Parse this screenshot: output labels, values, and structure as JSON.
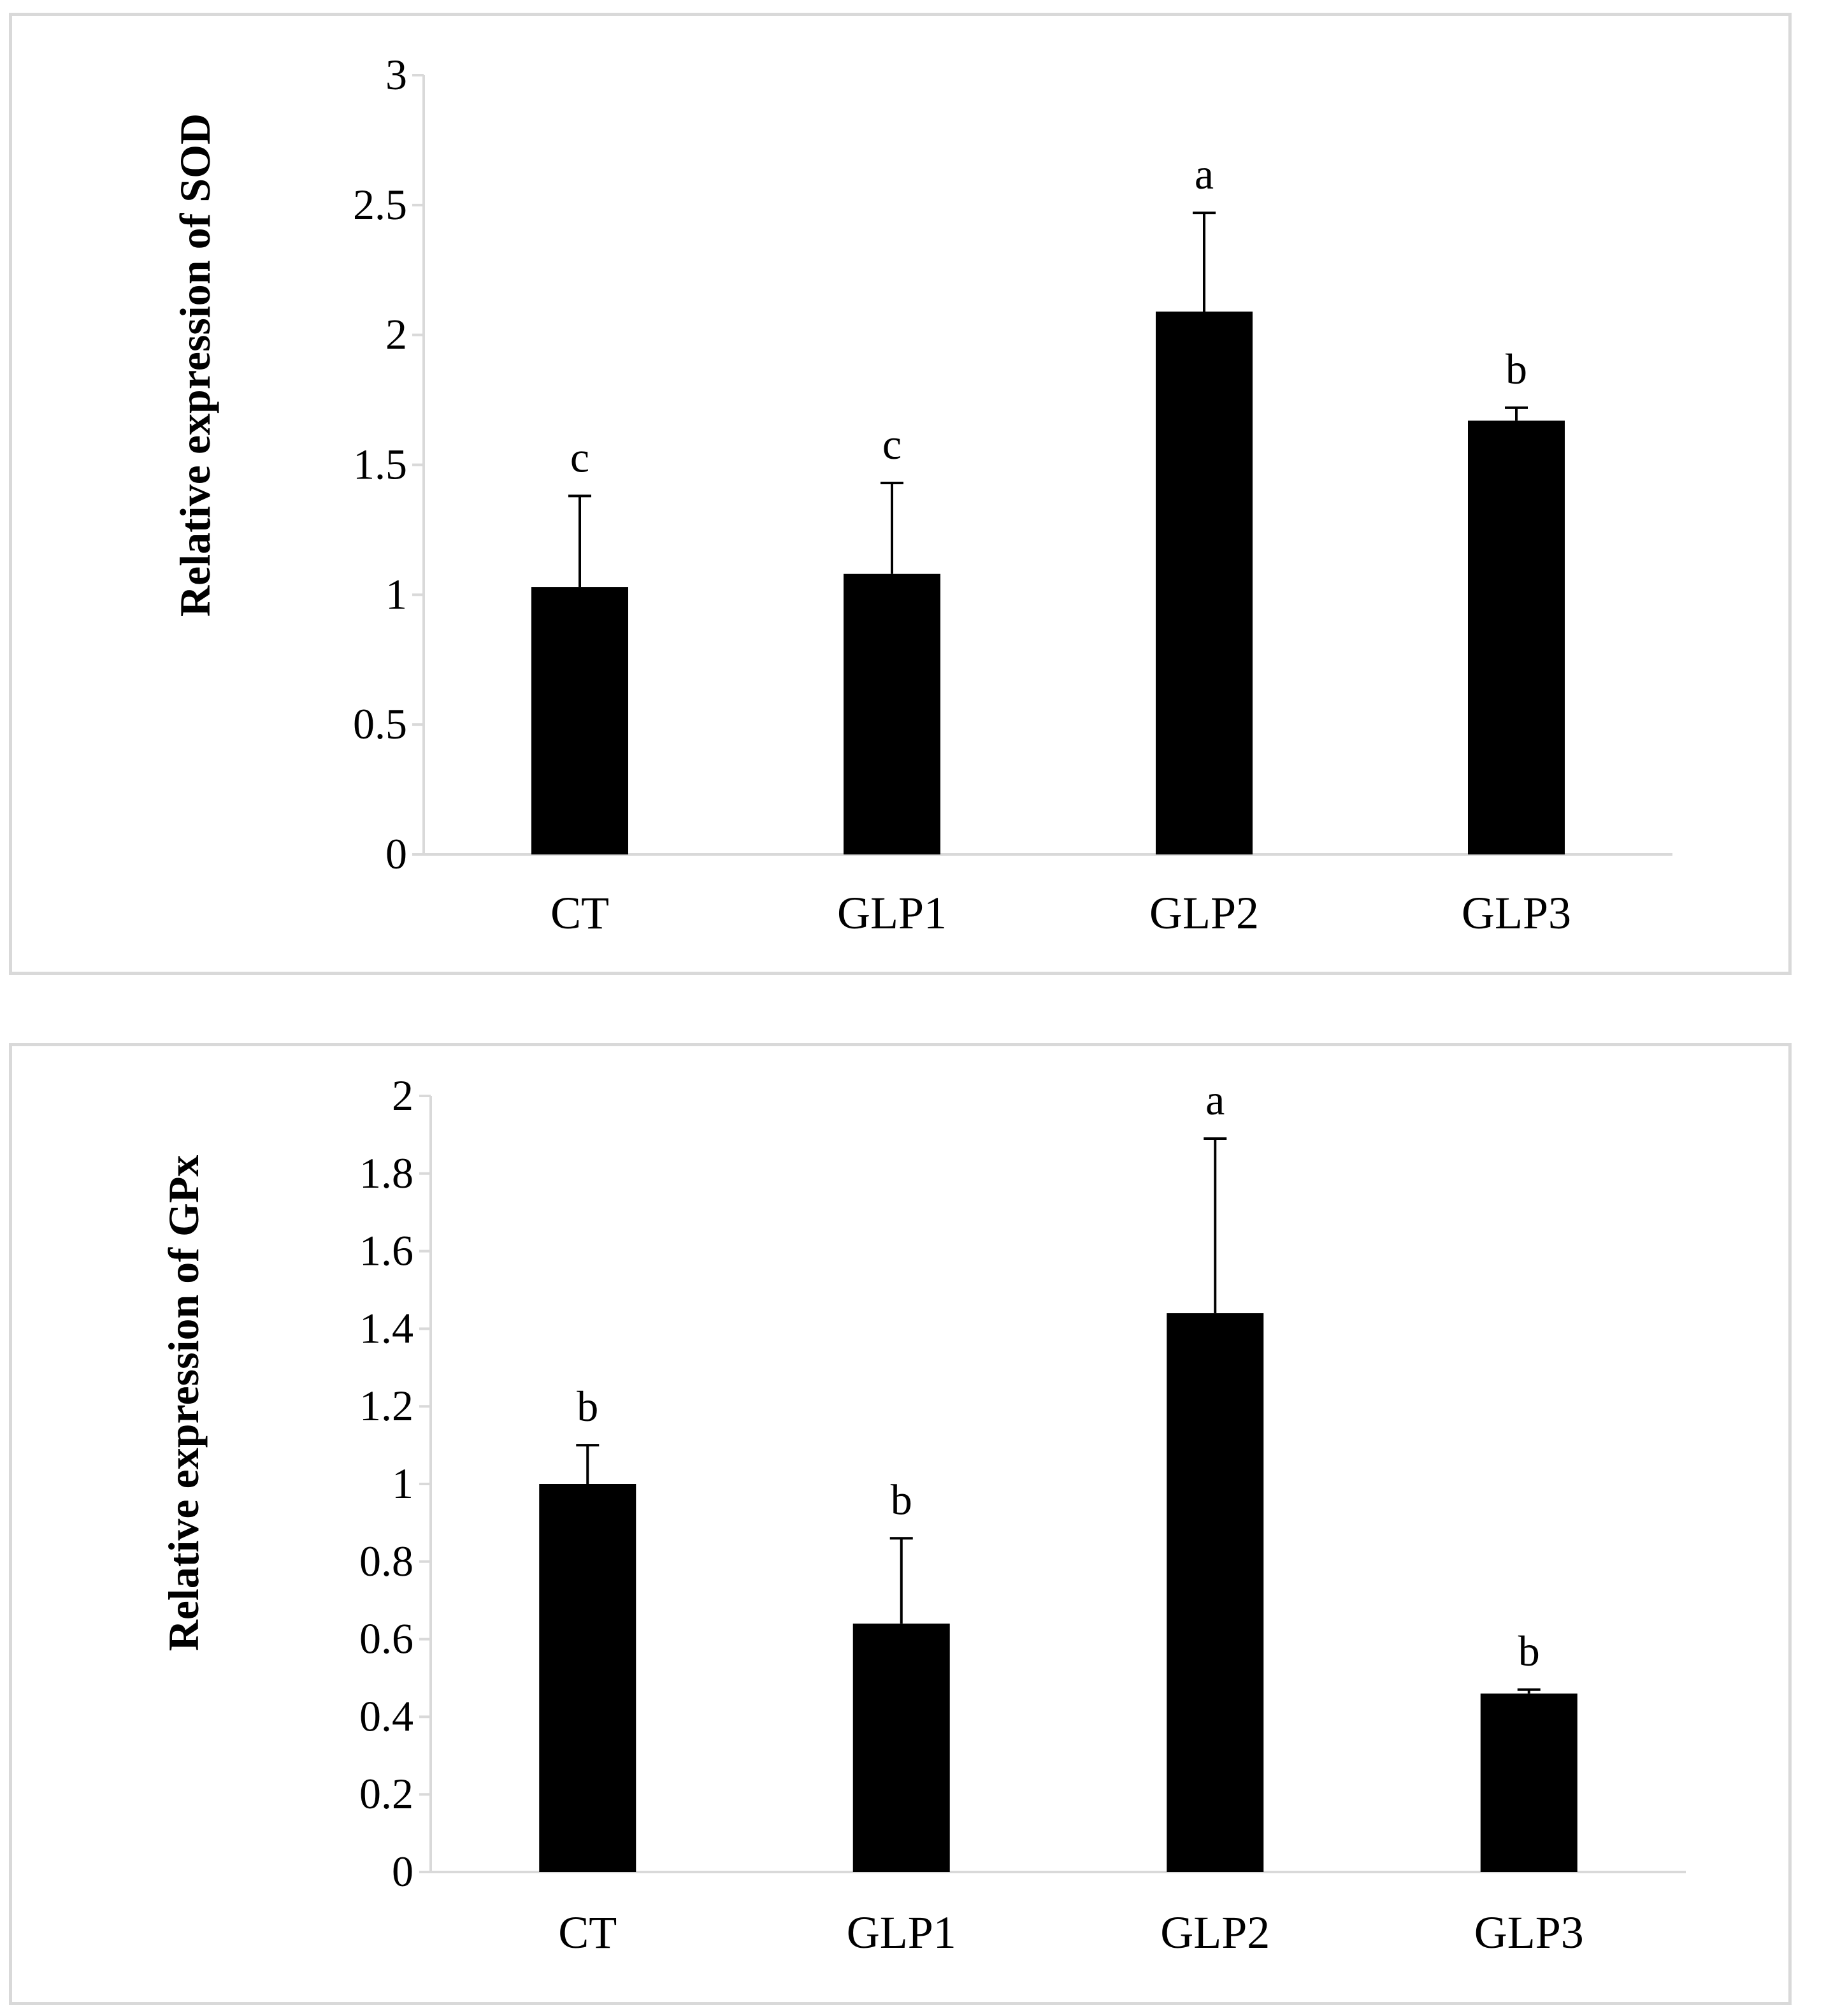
{
  "chart_data": [
    {
      "type": "bar",
      "title": "",
      "xlabel": "",
      "ylabel": "Relative expression of SOD",
      "categories": [
        "CT",
        "GLP1",
        "GLP2",
        "GLP3"
      ],
      "values": [
        1.03,
        1.08,
        2.09,
        1.67
      ],
      "errors": [
        0.35,
        0.35,
        0.38,
        0.05
      ],
      "significance": [
        "c",
        "c",
        "a",
        "b"
      ],
      "ylim": [
        0,
        3
      ],
      "yticks": [
        0,
        0.5,
        1,
        1.5,
        2,
        2.5,
        3
      ],
      "ytick_labels": [
        "0",
        "0.5",
        "1",
        "1.5",
        "2",
        "2.5",
        "3"
      ],
      "bar_color": "#000000",
      "grid": false
    },
    {
      "type": "bar",
      "title": "",
      "xlabel": "",
      "ylabel": "Relative expression of GPx",
      "categories": [
        "CT",
        "GLP1",
        "GLP2",
        "GLP3"
      ],
      "values": [
        1.0,
        0.64,
        1.44,
        0.46
      ],
      "errors": [
        0.1,
        0.22,
        0.45,
        0.01
      ],
      "significance": [
        "b",
        "b",
        "a",
        "b"
      ],
      "ylim": [
        0,
        2
      ],
      "yticks": [
        0,
        0.2,
        0.4,
        0.6,
        0.8,
        1,
        1.2,
        1.4,
        1.6,
        1.8,
        2
      ],
      "ytick_labels": [
        "0",
        "0.2",
        "0.4",
        "0.6",
        "0.8",
        "1",
        "1.2",
        "1.4",
        "1.6",
        "1.8",
        "2"
      ],
      "bar_color": "#000000",
      "grid": false
    }
  ]
}
